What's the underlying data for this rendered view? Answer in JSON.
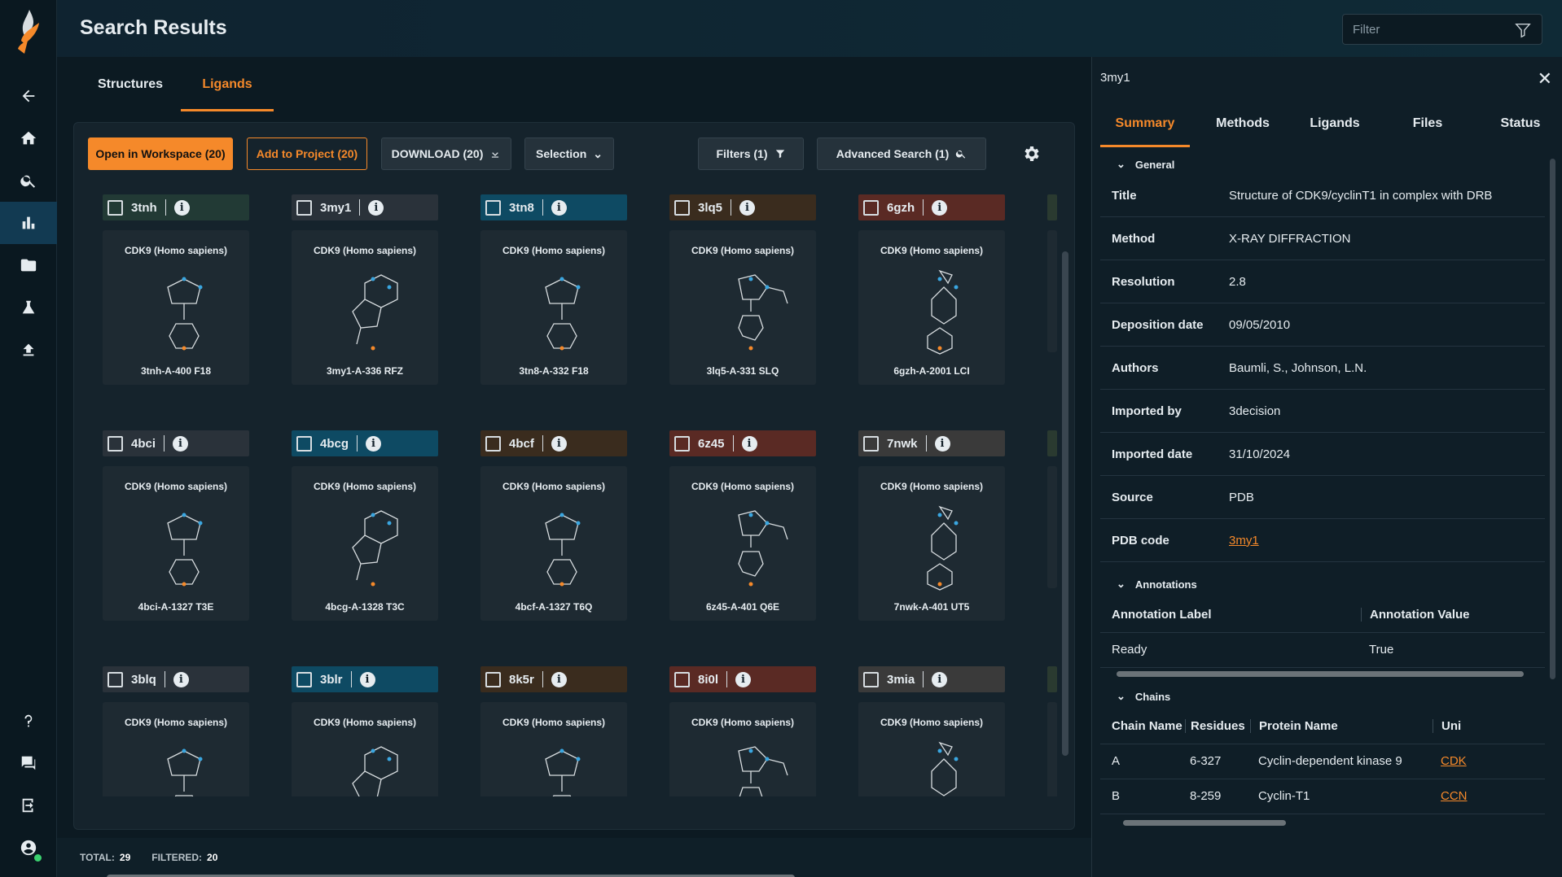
{
  "header": {
    "title": "Search Results",
    "filter_placeholder": "Filter"
  },
  "tabs": [
    "Structures",
    "Ligands"
  ],
  "toolbar": {
    "open_workspace": "Open in Workspace (20)",
    "add_project": "Add to Project (20)",
    "download": "DOWNLOAD (20)",
    "selection": "Selection",
    "filters": "Filters (1)",
    "advanced_search": "Advanced Search (1)"
  },
  "cards": [
    {
      "code": "3tnh",
      "species": "CDK9 (Homo sapiens)",
      "ligand": "3tnh-A-400 F18",
      "color": "#223a35"
    },
    {
      "code": "3my1",
      "species": "CDK9 (Homo sapiens)",
      "ligand": "3my1-A-336 RFZ",
      "color": "#2a323a"
    },
    {
      "code": "3tn8",
      "species": "CDK9 (Homo sapiens)",
      "ligand": "3tn8-A-332 F18",
      "color": "#0e4a63"
    },
    {
      "code": "3lq5",
      "species": "CDK9 (Homo sapiens)",
      "ligand": "3lq5-A-331 SLQ",
      "color": "#3a2c1e"
    },
    {
      "code": "6gzh",
      "species": "CDK9 (Homo sapiens)",
      "ligand": "6gzh-A-2001 LCI",
      "color": "#5a2a24"
    },
    {
      "code": "4bci",
      "species": "CDK9 (Homo sapiens)",
      "ligand": "4bci-A-1327 T3E",
      "color": "#2a323a"
    },
    {
      "code": "4bcg",
      "species": "CDK9 (Homo sapiens)",
      "ligand": "4bcg-A-1328 T3C",
      "color": "#0e4a63"
    },
    {
      "code": "4bcf",
      "species": "CDK9 (Homo sapiens)",
      "ligand": "4bcf-A-1327 T6Q",
      "color": "#3a2c1e"
    },
    {
      "code": "6z45",
      "species": "CDK9 (Homo sapiens)",
      "ligand": "6z45-A-401 Q6E",
      "color": "#5a2a24"
    },
    {
      "code": "7nwk",
      "species": "CDK9 (Homo sapiens)",
      "ligand": "7nwk-A-401 UT5",
      "color": "#3a3a3a"
    },
    {
      "code": "3blq",
      "species": "CDK9 (Homo sapiens)",
      "ligand": "",
      "color": "#2a323a"
    },
    {
      "code": "3blr",
      "species": "CDK9 (Homo sapiens)",
      "ligand": "",
      "color": "#0e4a63"
    },
    {
      "code": "8k5r",
      "species": "CDK9 (Homo sapiens)",
      "ligand": "",
      "color": "#3a2c1e"
    },
    {
      "code": "8i0l",
      "species": "CDK9 (Homo sapiens)",
      "ligand": "",
      "color": "#5a2a24"
    },
    {
      "code": "3mia",
      "species": "CDK9 (Homo sapiens)",
      "ligand": "",
      "color": "#3a3a3a"
    }
  ],
  "footer": {
    "total_label": "TOTAL:",
    "total": "29",
    "filtered_label": "FILTERED:",
    "filtered": "20"
  },
  "detail": {
    "title": "3my1",
    "tabs": [
      "Summary",
      "Methods",
      "Ligands",
      "Files",
      "Status"
    ],
    "general_label": "General",
    "fields": [
      {
        "k": "Title",
        "v": "Structure of CDK9/cyclinT1 in complex with DRB"
      },
      {
        "k": "Method",
        "v": "X-RAY DIFFRACTION"
      },
      {
        "k": "Resolution",
        "v": "2.8"
      },
      {
        "k": "Deposition date",
        "v": "09/05/2010"
      },
      {
        "k": "Authors",
        "v": "Baumli, S., Johnson, L.N."
      },
      {
        "k": "Imported by",
        "v": "3decision"
      },
      {
        "k": "Imported date",
        "v": "31/10/2024"
      },
      {
        "k": "Source",
        "v": "PDB"
      },
      {
        "k": "PDB code",
        "v": "3my1"
      }
    ],
    "annotations_label": "Annotations",
    "annotation_headers": [
      "Annotation Label",
      "Annotation Value"
    ],
    "annotation_rows": [
      [
        "Ready",
        "True"
      ]
    ],
    "chains_label": "Chains",
    "chain_headers": [
      "Chain Name",
      "Residues",
      "Protein Name",
      "Uni"
    ],
    "chain_rows": [
      [
        "A",
        "6-327",
        "Cyclin-dependent kinase 9",
        "CDK"
      ],
      [
        "B",
        "8-259",
        "Cyclin-T1",
        "CCN"
      ]
    ]
  }
}
